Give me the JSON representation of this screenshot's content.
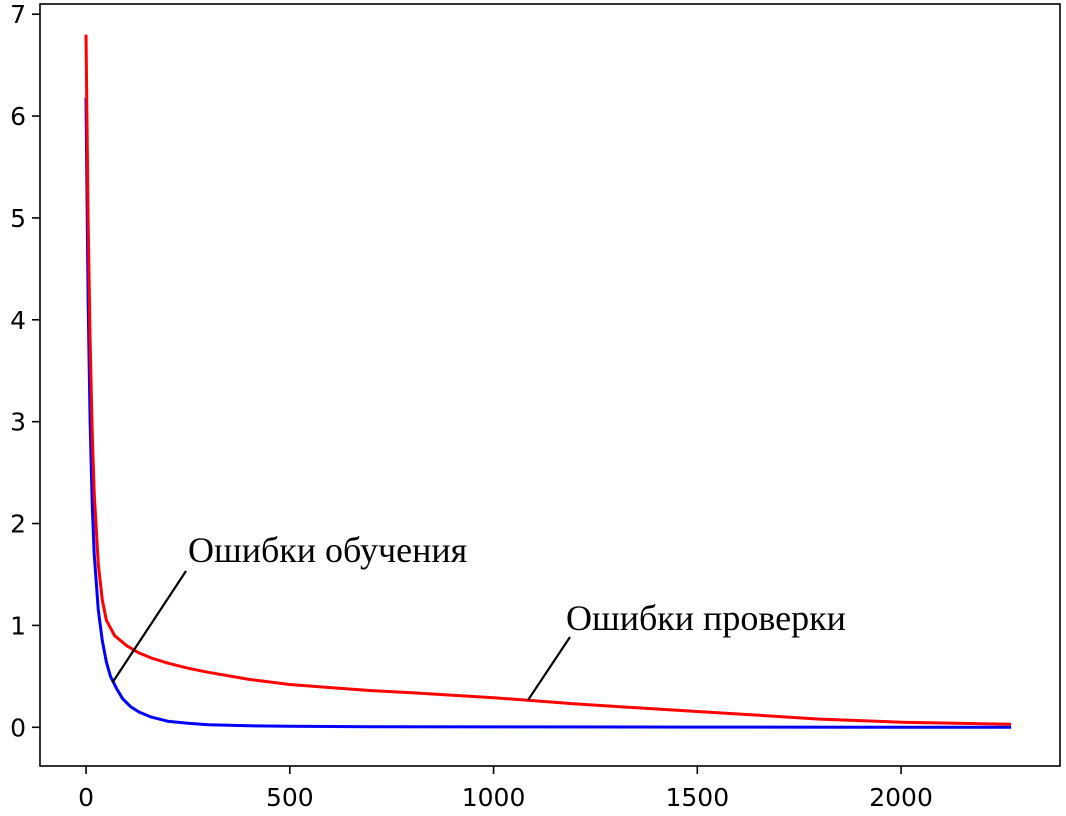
{
  "chart_data": {
    "type": "line",
    "xlim": [
      -113,
      2390
    ],
    "ylim": [
      -0.38,
      7.1
    ],
    "x_ticks": [
      0,
      500,
      1000,
      1500,
      2000
    ],
    "y_ticks": [
      0,
      1,
      2,
      3,
      4,
      5,
      6,
      7
    ],
    "x_tick_labels": [
      "0",
      "500",
      "1000",
      "1500",
      "2000"
    ],
    "y_tick_labels": [
      "0",
      "1",
      "2",
      "3",
      "4",
      "5",
      "6",
      "7"
    ],
    "grid": false,
    "series": [
      {
        "color": "#0000ff",
        "x": [
          0,
          5,
          10,
          15,
          20,
          30,
          40,
          50,
          60,
          75,
          90,
          110,
          130,
          160,
          200,
          250,
          300,
          400,
          500,
          700,
          1000,
          1500,
          2000,
          2270
        ],
        "y": [
          6.18,
          4.2,
          3.0,
          2.2,
          1.7,
          1.15,
          0.85,
          0.64,
          0.5,
          0.38,
          0.28,
          0.2,
          0.15,
          0.1,
          0.06,
          0.04,
          0.025,
          0.015,
          0.01,
          0.006,
          0.004,
          0.002,
          0.001,
          0.001
        ]
      },
      {
        "color": "#ff0000",
        "x": [
          0,
          5,
          10,
          15,
          20,
          30,
          40,
          50,
          70,
          100,
          130,
          160,
          200,
          250,
          300,
          400,
          500,
          600,
          700,
          800,
          1000,
          1100,
          1200,
          1400,
          1600,
          1800,
          2000,
          2270
        ],
        "y": [
          6.8,
          5.0,
          3.8,
          2.9,
          2.3,
          1.6,
          1.25,
          1.05,
          0.9,
          0.8,
          0.73,
          0.68,
          0.63,
          0.58,
          0.54,
          0.47,
          0.42,
          0.39,
          0.36,
          0.34,
          0.29,
          0.26,
          0.23,
          0.18,
          0.13,
          0.08,
          0.05,
          0.03
        ]
      }
    ],
    "annotations": [
      {
        "text": "Ошибки обучения",
        "point": [
          65,
          0.44
        ]
      },
      {
        "text": "Ошибки проверки",
        "point": [
          1085,
          0.27
        ]
      }
    ]
  }
}
